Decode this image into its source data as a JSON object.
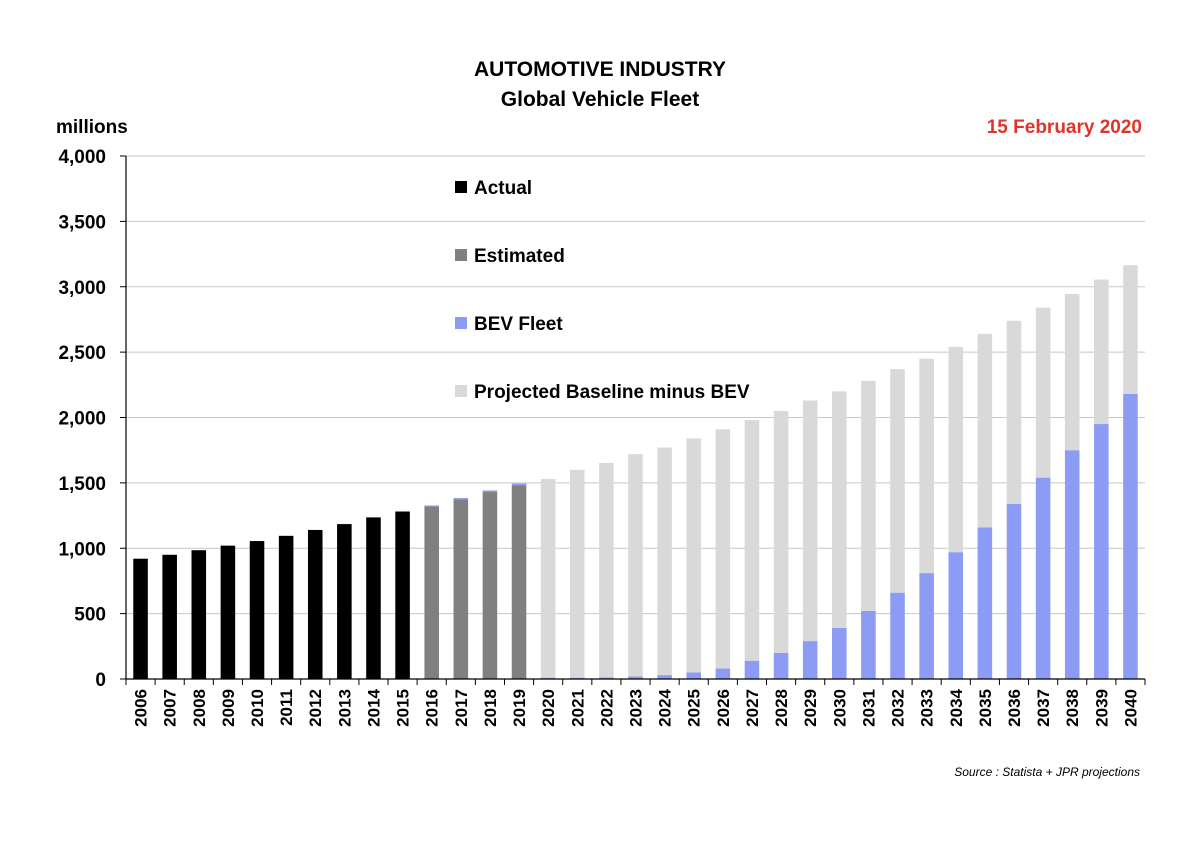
{
  "chart_data": {
    "type": "bar",
    "stacked": true,
    "title": "AUTOMOTIVE INDUSTRY",
    "subtitle": "Global Vehicle Fleet",
    "ylabel": "millions",
    "date": "15 February 2020",
    "source": "Source : Statista + JPR projections",
    "ylim": [
      0,
      4000
    ],
    "yticks": [
      0,
      500,
      1000,
      1500,
      2000,
      2500,
      3000,
      3500,
      4000
    ],
    "ytick_labels": [
      "0",
      "500",
      "1,000",
      "1,500",
      "2,000",
      "2,500",
      "3,000",
      "3,500",
      "4,000"
    ],
    "grid": true,
    "legend_position": "top-center",
    "categories": [
      "2006",
      "2007",
      "2008",
      "2009",
      "2010",
      "2011",
      "2012",
      "2013",
      "2014",
      "2015",
      "2016",
      "2017",
      "2018",
      "2019",
      "2020",
      "2021",
      "2022",
      "2023",
      "2024",
      "2025",
      "2026",
      "2027",
      "2028",
      "2029",
      "2030",
      "2031",
      "2032",
      "2033",
      "2034",
      "2035",
      "2036",
      "2037",
      "2038",
      "2039",
      "2040"
    ],
    "series": [
      {
        "name": "Actual",
        "color": "#000000",
        "values": [
          920,
          950,
          985,
          1020,
          1055,
          1095,
          1140,
          1185,
          1235,
          1280,
          0,
          0,
          0,
          0,
          0,
          0,
          0,
          0,
          0,
          0,
          0,
          0,
          0,
          0,
          0,
          0,
          0,
          0,
          0,
          0,
          0,
          0,
          0,
          0,
          0
        ]
      },
      {
        "name": "Estimated",
        "color": "#808080",
        "values": [
          0,
          0,
          0,
          0,
          0,
          0,
          0,
          0,
          0,
          0,
          1320,
          1375,
          1430,
          1480,
          0,
          0,
          0,
          0,
          0,
          0,
          0,
          0,
          0,
          0,
          0,
          0,
          0,
          0,
          0,
          0,
          0,
          0,
          0,
          0,
          0
        ]
      },
      {
        "name": "BEV Fleet",
        "color": "#8c9cf4",
        "values": [
          0,
          0,
          0,
          0,
          0,
          0,
          0,
          1,
          3,
          5,
          7,
          9,
          12,
          15,
          10,
          10,
          12,
          20,
          30,
          50,
          80,
          140,
          200,
          290,
          390,
          520,
          660,
          810,
          970,
          1160,
          1340,
          1540,
          1750,
          1950,
          2180
        ]
      },
      {
        "name": "Projected Baseline minus BEV",
        "color": "#d9d9d9",
        "values": [
          0,
          0,
          0,
          0,
          0,
          0,
          0,
          0,
          0,
          0,
          0,
          0,
          0,
          0,
          1520,
          1590,
          1640,
          1700,
          1740,
          1790,
          1830,
          1840,
          1850,
          1840,
          1810,
          1760,
          1710,
          1640,
          1570,
          1480,
          1400,
          1300,
          1195,
          1105,
          985
        ]
      }
    ]
  }
}
